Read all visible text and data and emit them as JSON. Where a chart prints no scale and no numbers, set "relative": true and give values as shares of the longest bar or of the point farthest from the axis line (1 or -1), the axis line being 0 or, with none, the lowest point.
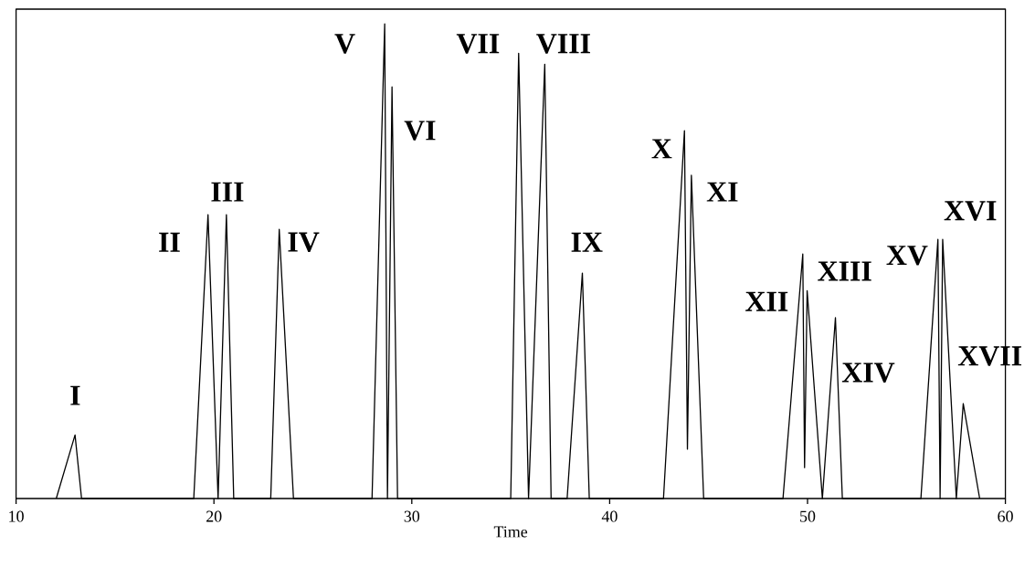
{
  "chart_data": {
    "type": "line",
    "xlabel": "Time",
    "relative": true,
    "tick_labels": "x",
    "marker": "none",
    "color": "#000000",
    "xlim": [
      10,
      60
    ],
    "xticks": [
      10,
      20,
      30,
      40,
      50,
      60
    ],
    "x": [
      12.03,
      12.98,
      13.31,
      18.98,
      19.7,
      20.21,
      20.63,
      21.0,
      22.87,
      23.3,
      24.02,
      27.99,
      28.63,
      28.77,
      29.0,
      29.28,
      35.0,
      35.4,
      35.9,
      36.72,
      37.04,
      37.85,
      38.62,
      38.97,
      42.72,
      43.78,
      43.93,
      44.13,
      44.75,
      48.76,
      49.76,
      49.85,
      49.98,
      50.75,
      51.41,
      51.76,
      55.73,
      56.59,
      56.7,
      56.83,
      57.52,
      57.87,
      58.7
    ],
    "values": [
      0,
      0.134,
      0,
      0,
      0.598,
      0,
      0.598,
      0,
      0,
      0.567,
      0,
      0,
      1,
      0,
      0.867,
      0,
      0,
      0.938,
      0,
      0.915,
      0,
      0,
      0.475,
      0,
      0,
      0.775,
      0.104,
      0.681,
      0,
      0,
      0.515,
      0.065,
      0.438,
      0,
      0.381,
      0,
      0,
      0.546,
      0,
      0.546,
      0,
      0.2,
      0
    ],
    "annotations": [
      {
        "text": "I",
        "x": 12.98,
        "y": 0.134
      },
      {
        "text": "II",
        "x": 19.7,
        "y": 0.598
      },
      {
        "text": "III",
        "x": 20.63,
        "y": 0.598
      },
      {
        "text": "IV",
        "x": 23.3,
        "y": 0.567
      },
      {
        "text": "V",
        "x": 28.63,
        "y": 1
      },
      {
        "text": "VI",
        "x": 29.0,
        "y": 0.867
      },
      {
        "text": "VII",
        "x": 35.4,
        "y": 0.938
      },
      {
        "text": "VIII",
        "x": 36.72,
        "y": 0.915
      },
      {
        "text": "IX",
        "x": 38.62,
        "y": 0.475
      },
      {
        "text": "X",
        "x": 43.78,
        "y": 0.775
      },
      {
        "text": "XI",
        "x": 44.13,
        "y": 0.681
      },
      {
        "text": "XII",
        "x": 49.76,
        "y": 0.515
      },
      {
        "text": "XIII",
        "x": 49.98,
        "y": 0.438
      },
      {
        "text": "XIV",
        "x": 51.41,
        "y": 0.381
      },
      {
        "text": "XV",
        "x": 56.59,
        "y": 0.546
      },
      {
        "text": "XVI",
        "x": 56.83,
        "y": 0.546
      },
      {
        "text": "XVII",
        "x": 57.87,
        "y": 0.2
      }
    ]
  }
}
